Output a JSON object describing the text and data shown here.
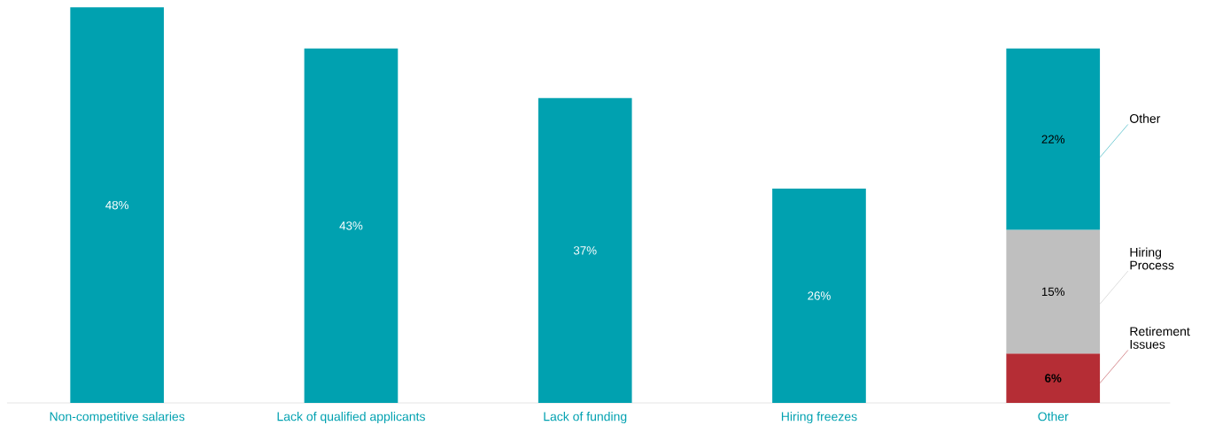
{
  "chart_data": {
    "type": "bar",
    "stacked": true,
    "categories": [
      "Non-competitive salaries",
      "Lack of qualified applicants",
      "Lack of funding",
      "Hiring freezes",
      "Other"
    ],
    "series": [
      {
        "color": "#00a1b0",
        "values": [
          48,
          43,
          37,
          26,
          null
        ],
        "value_labels": [
          "48%",
          "43%",
          "37%",
          "26%",
          null
        ]
      },
      {
        "name": "Retirement Issues",
        "color": "#b52d35",
        "values": [
          null,
          null,
          null,
          null,
          6
        ],
        "value_labels": [
          null,
          null,
          null,
          null,
          "**6%**"
        ]
      },
      {
        "name": "Hiring Process",
        "color": "#bfbfbf",
        "values": [
          null,
          null,
          null,
          null,
          15
        ],
        "value_labels": [
          null,
          null,
          null,
          null,
          "15%"
        ]
      },
      {
        "name": "Other",
        "color": "#00a1b0",
        "values": [
          null,
          null,
          null,
          null,
          22
        ],
        "value_labels": [
          null,
          null,
          null,
          null,
          "22%"
        ]
      }
    ]
  }
}
